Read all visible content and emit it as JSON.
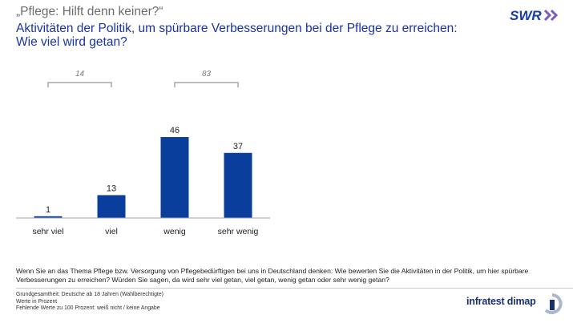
{
  "header": {
    "kicker": "„Pflege: Hilft denn keiner?“",
    "title_line1": "Aktivitäten der Politik, um spürbare Verbesserungen bei der Pflege zu erreichen:",
    "title_line2": "Wie viel wird getan?"
  },
  "logos": {
    "broadcaster": "SWR",
    "pollster": "infratest dimap"
  },
  "colors": {
    "accent": "#1a33a6",
    "bar": "#0a3e9c",
    "bracket": "#a6a6a6",
    "logo_blue": "#1a3ba8",
    "logo_chevron": "#7a5cc8"
  },
  "chart_data": {
    "type": "bar",
    "categories": [
      "sehr viel",
      "viel",
      "wenig",
      "sehr wenig"
    ],
    "values": [
      1,
      13,
      46,
      37
    ],
    "ylim": [
      0,
      46
    ],
    "brackets": [
      {
        "from": 0,
        "to": 1,
        "label": "14"
      },
      {
        "from": 2,
        "to": 3,
        "label": "83"
      }
    ]
  },
  "question": "Wenn Sie an das Thema Pflege bzw. Versorgung von Pflegebedürftigen bei uns in Deutschland denken: Wie bewerten Sie die Aktivitäten in der Politik, um hier spürbare Verbesserungen zu erreichen? Würden Sie sagen, da wird sehr viel getan, viel getan, wenig getan oder sehr wenig getan?",
  "footnotes": {
    "line1": "Grundgesamtheit: Deutsche ab 18 Jahren (Wahlberechtigte)",
    "line2": "Werte in Prozent",
    "line3": "Fehlende Werte zu 100 Prozent: weiß nicht / keine Angabe"
  }
}
